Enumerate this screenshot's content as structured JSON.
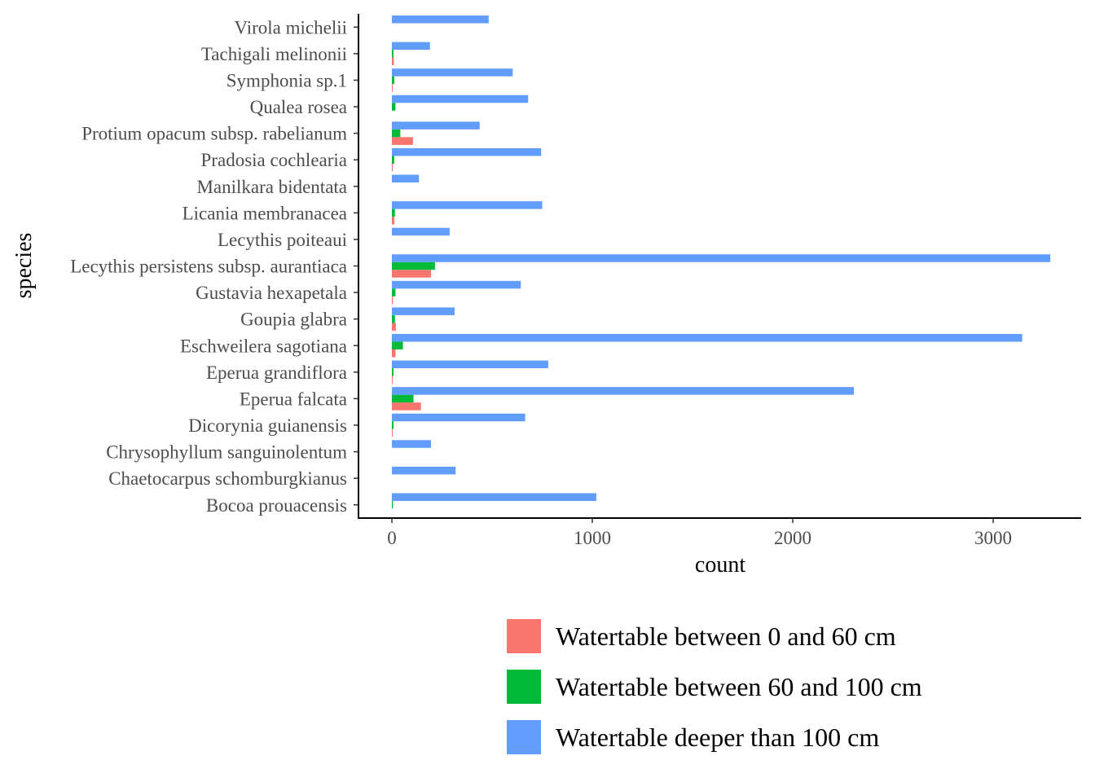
{
  "chart_data": {
    "type": "bar",
    "orientation": "horizontal",
    "xlabel": "count",
    "ylabel": "species",
    "xlim": [
      -165,
      3440
    ],
    "x_ticks": [
      0,
      1000,
      2000,
      3000
    ],
    "x_tick_labels": [
      "0",
      "1000",
      "2000",
      "3000"
    ],
    "grid": false,
    "legend_position": "bottom",
    "categories": [
      "Bocoa prouacensis",
      "Chaetocarpus schomburgkianus",
      "Chrysophyllum sanguinolentum",
      "Dicorynia guianensis",
      "Eperua falcata",
      "Eperua grandiflora",
      "Eschweilera sagotiana",
      "Goupia glabra",
      "Gustavia hexapetala",
      "Lecythis persistens subsp. aurantiaca",
      "Lecythis poiteaui",
      "Licania membranacea",
      "Manilkara bidentata",
      "Pradosia cochlearia",
      "Protium opacum subsp. rabelianum",
      "Qualea rosea",
      "Symphonia sp.1",
      "Tachigali melinonii",
      "Virola michelii"
    ],
    "series": [
      {
        "name": "Watertable between 0 and 60 cm",
        "color": "#F8766D",
        "values": [
          0,
          0,
          0,
          2,
          145,
          3,
          18,
          20,
          5,
          195,
          0,
          12,
          0,
          3,
          105,
          0,
          3,
          10,
          0
        ]
      },
      {
        "name": "Watertable between 60 and 100 cm",
        "color": "#00BA38",
        "values": [
          5,
          0,
          0,
          8,
          108,
          8,
          55,
          15,
          18,
          215,
          0,
          15,
          0,
          12,
          42,
          18,
          12,
          8,
          0
        ]
      },
      {
        "name": "Watertable deeper than 100 cm",
        "color": "#619CFF",
        "values": [
          1020,
          318,
          195,
          665,
          2305,
          780,
          3145,
          313,
          643,
          3285,
          288,
          750,
          135,
          745,
          438,
          680,
          603,
          190,
          483
        ]
      }
    ]
  }
}
